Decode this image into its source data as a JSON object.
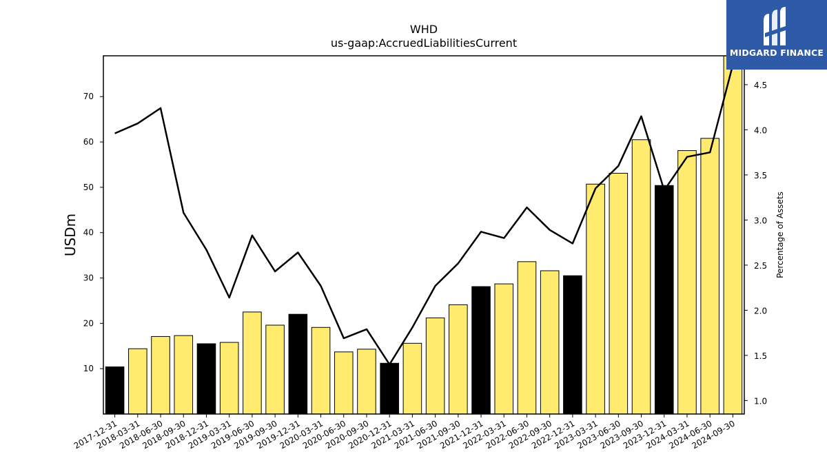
{
  "logo": {
    "text": "MIDGARD FINANCE",
    "bg_color": "#2e5aa8",
    "icon": "midgard-m-logo-icon"
  },
  "chart_data": {
    "type": "bar",
    "title": "WHD",
    "subtitle": "us-gaap:AccruedLiabilitiesCurrent",
    "ylabel": "USDm",
    "y2label": "Percentage of Assets",
    "ylim": [
      0,
      79
    ],
    "y2lim": [
      0.85,
      4.82
    ],
    "yticks": [
      10,
      20,
      30,
      40,
      50,
      60,
      70
    ],
    "y2ticks": [
      1.0,
      1.5,
      2.0,
      2.5,
      3.0,
      3.5,
      4.0,
      4.5
    ],
    "categories": [
      "2017-12-31",
      "2018-03-31",
      "2018-06-30",
      "2018-09-30",
      "2018-12-31",
      "2019-03-31",
      "2019-06-30",
      "2019-09-30",
      "2019-12-31",
      "2020-03-31",
      "2020-06-30",
      "2020-09-30",
      "2020-12-31",
      "2021-03-31",
      "2021-06-30",
      "2021-09-30",
      "2021-12-31",
      "2022-03-31",
      "2022-06-30",
      "2022-09-30",
      "2022-12-31",
      "2023-03-31",
      "2023-06-30",
      "2023-09-30",
      "2023-12-31",
      "2024-03-31",
      "2024-06-30",
      "2024-09-30"
    ],
    "series": [
      {
        "type": "bar",
        "values": [
          10.4,
          14.4,
          17.1,
          17.3,
          15.5,
          15.8,
          22.5,
          19.6,
          22.0,
          19.1,
          13.7,
          14.3,
          11.2,
          15.6,
          21.2,
          24.1,
          28.1,
          28.7,
          33.6,
          31.6,
          30.5,
          50.7,
          53.1,
          60.5,
          50.4,
          58.1,
          60.8,
          79.0
        ],
        "colors": [
          "#000000",
          "#ffeb6e",
          "#ffeb6e",
          "#ffeb6e",
          "#000000",
          "#ffeb6e",
          "#ffeb6e",
          "#ffeb6e",
          "#000000",
          "#ffeb6e",
          "#ffeb6e",
          "#ffeb6e",
          "#000000",
          "#ffeb6e",
          "#ffeb6e",
          "#ffeb6e",
          "#000000",
          "#ffeb6e",
          "#ffeb6e",
          "#ffeb6e",
          "#000000",
          "#ffeb6e",
          "#ffeb6e",
          "#ffeb6e",
          "#000000",
          "#ffeb6e",
          "#ffeb6e",
          "#ffeb6e"
        ]
      },
      {
        "type": "line",
        "axis": "right",
        "color": "#000000",
        "values": [
          3.96,
          4.07,
          4.24,
          3.08,
          2.67,
          2.14,
          2.83,
          2.43,
          2.64,
          2.27,
          1.69,
          1.79,
          1.4,
          1.81,
          2.27,
          2.52,
          2.87,
          2.8,
          3.14,
          2.89,
          2.74,
          3.35,
          3.6,
          4.15,
          3.33,
          3.7,
          3.75,
          4.72
        ]
      }
    ],
    "grid": false,
    "legend": "none"
  }
}
